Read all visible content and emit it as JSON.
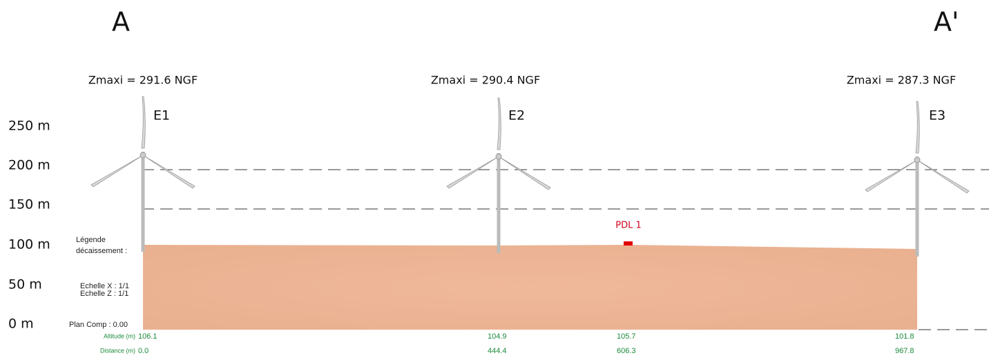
{
  "section": {
    "start": "A",
    "end": "A'"
  },
  "turbines": [
    {
      "label": "E1",
      "zmax": "Zmaxi = 291.6 NGF"
    },
    {
      "label": "E2",
      "zmax": "Zmaxi = 290.4 NGF"
    },
    {
      "label": "E3",
      "zmax": "Zmaxi = 287.3 NGF"
    }
  ],
  "height_labels": [
    "250 m",
    "200 m",
    "150 m",
    "100 m",
    "50 m",
    "0 m"
  ],
  "legend": {
    "title": "Légende",
    "subtitle": "décaissement :",
    "scale_x": "Echelle X : 1/1",
    "scale_z": "Echelle Z : 1/1",
    "plan": "Plan Comp : 0.00"
  },
  "viewpoint": "PDL 1",
  "profile": {
    "altitude_label": "Altitude (m)",
    "distance_label": "Distance (m)",
    "altitudes": [
      "106.1",
      "104.9",
      "105.7",
      "101.8"
    ],
    "distances": [
      "0.0",
      "444.4",
      "606.3",
      "967.8"
    ]
  }
}
